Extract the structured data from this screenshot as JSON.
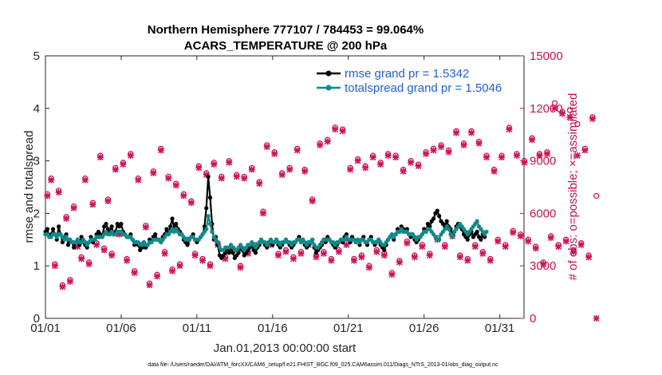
{
  "chart_data": {
    "type": "line",
    "title_line1": "Northern Hemisphere 777107 / 784453 = 99.064%",
    "title_line2": "ACARS_TEMPERATURE @ 200 hPa",
    "xlabel": "Jan.01,2013 00:00:00 start",
    "ylabel_left": "rmse and totalspread",
    "ylabel_right": "# of obs: o=possible; ×=assimilated",
    "footnote": "data file: /Users/raeder/DAI/ATM_forcXX/CAM6_setup/f.e21.FHIST_BGC.f09_025.CAM6assim.011/Diags_NTrS_2013-01/obs_diag_output.nc",
    "x_tick_labels": [
      "01/01",
      "01/06",
      "01/11",
      "01/16",
      "01/21",
      "01/26",
      "01/31"
    ],
    "x_tick_days": [
      0,
      5,
      10,
      15,
      20,
      25,
      30
    ],
    "xlim_days": [
      0,
      31.6
    ],
    "ylim_left": [
      0,
      5
    ],
    "y_ticks_left": [
      "0",
      "1",
      "2",
      "3",
      "4",
      "5"
    ],
    "ylim_right": [
      0,
      15000
    ],
    "y_ticks_right": [
      "0",
      "3000",
      "6000",
      "9000",
      "12000",
      "15000"
    ],
    "colors": {
      "rmse": "#000000",
      "spread": "#0e8a8a",
      "obs": "#d0145a",
      "legend_text": "#1f5fd6",
      "right_axis": "#c8104e"
    },
    "legend": [
      {
        "name": "rmse grand pr = 1.5342"
      },
      {
        "name": "totalspread grand pr = 1.5046"
      }
    ],
    "series": [
      {
        "name": "rmse",
        "step_days": 0.125,
        "values": [
          1.65,
          1.7,
          1.55,
          1.6,
          1.7,
          1.6,
          1.5,
          1.75,
          1.6,
          1.45,
          1.55,
          1.6,
          1.4,
          1.5,
          1.45,
          1.35,
          1.45,
          1.5,
          1.4,
          1.55,
          1.45,
          1.4,
          1.35,
          1.45,
          1.55,
          1.45,
          1.5,
          1.6,
          1.65,
          1.6,
          1.55,
          1.75,
          1.8,
          1.7,
          1.65,
          1.75,
          1.6,
          1.65,
          1.8,
          1.75,
          1.8,
          1.65,
          1.6,
          1.55,
          1.55,
          1.6,
          1.5,
          1.4,
          1.45,
          1.4,
          1.3,
          1.35,
          1.45,
          1.35,
          1.4,
          1.5,
          1.45,
          1.55,
          1.6,
          1.5,
          1.5,
          1.45,
          1.55,
          1.6,
          1.7,
          1.6,
          1.75,
          1.9,
          1.7,
          1.8,
          1.7,
          1.65,
          1.6,
          1.5,
          1.45,
          1.4,
          1.5,
          1.55,
          1.6,
          1.5,
          1.45,
          1.5,
          1.55,
          1.6,
          1.75,
          2.1,
          2.7,
          2.3,
          1.8,
          1.5,
          1.55,
          1.4,
          1.2,
          1.15,
          1.2,
          1.25,
          1.3,
          1.25,
          1.35,
          1.25,
          1.15,
          1.2,
          1.25,
          1.35,
          1.3,
          1.2,
          1.25,
          1.3,
          1.35,
          1.4,
          1.3,
          1.25,
          1.35,
          1.4,
          1.5,
          1.45,
          1.4,
          1.35,
          1.45,
          1.5,
          1.4,
          1.45,
          1.5,
          1.4,
          1.35,
          1.4,
          1.45,
          1.5,
          1.45,
          1.4,
          1.35,
          1.4,
          1.45,
          1.5,
          1.55,
          1.45,
          1.5,
          1.4,
          1.35,
          1.4,
          1.45,
          1.5,
          1.35,
          1.25,
          1.3,
          1.35,
          1.4,
          1.5,
          1.45,
          1.55,
          1.5,
          1.45,
          1.4,
          1.35,
          1.4,
          1.45,
          1.5,
          1.45,
          1.55,
          1.6,
          1.5,
          1.45,
          1.55,
          1.5,
          1.45,
          1.5,
          1.4,
          1.5,
          1.55,
          1.45,
          1.4,
          1.5,
          1.55,
          1.45,
          1.4,
          1.45,
          1.5,
          1.4,
          1.35,
          1.3,
          1.4,
          1.5,
          1.55,
          1.6,
          1.5,
          1.6,
          1.7,
          1.65,
          1.75,
          1.7,
          1.65,
          1.7,
          1.6,
          1.55,
          1.6,
          1.5,
          1.45,
          1.5,
          1.55,
          1.6,
          1.7,
          1.65,
          1.8,
          1.75,
          1.85,
          1.9,
          2.0,
          2.05,
          1.95,
          1.85,
          1.8,
          1.75,
          1.85,
          1.75,
          1.7,
          1.6,
          1.65,
          1.75,
          1.8,
          1.75,
          1.7,
          1.6,
          1.55,
          1.5,
          1.6,
          1.65,
          1.55,
          1.6,
          1.65,
          1.55,
          1.5,
          1.6,
          1.55
        ]
      },
      {
        "name": "totalspread",
        "step_days": 0.125,
        "values": [
          1.6,
          1.6,
          1.55,
          1.55,
          1.6,
          1.6,
          1.55,
          1.6,
          1.6,
          1.55,
          1.5,
          1.55,
          1.5,
          1.5,
          1.45,
          1.45,
          1.45,
          1.5,
          1.45,
          1.45,
          1.5,
          1.45,
          1.4,
          1.45,
          1.5,
          1.5,
          1.5,
          1.55,
          1.55,
          1.55,
          1.55,
          1.6,
          1.65,
          1.6,
          1.6,
          1.65,
          1.6,
          1.6,
          1.65,
          1.65,
          1.65,
          1.6,
          1.6,
          1.55,
          1.55,
          1.55,
          1.5,
          1.45,
          1.45,
          1.45,
          1.4,
          1.4,
          1.45,
          1.4,
          1.4,
          1.45,
          1.45,
          1.5,
          1.5,
          1.5,
          1.5,
          1.45,
          1.5,
          1.55,
          1.6,
          1.6,
          1.65,
          1.7,
          1.65,
          1.7,
          1.65,
          1.6,
          1.6,
          1.55,
          1.5,
          1.5,
          1.5,
          1.55,
          1.55,
          1.5,
          1.5,
          1.5,
          1.55,
          1.6,
          1.65,
          1.7,
          1.95,
          1.8,
          1.65,
          1.55,
          1.5,
          1.45,
          1.35,
          1.3,
          1.3,
          1.35,
          1.35,
          1.35,
          1.4,
          1.35,
          1.3,
          1.3,
          1.35,
          1.4,
          1.35,
          1.3,
          1.35,
          1.4,
          1.4,
          1.45,
          1.4,
          1.35,
          1.4,
          1.45,
          1.5,
          1.45,
          1.45,
          1.4,
          1.45,
          1.5,
          1.45,
          1.45,
          1.5,
          1.45,
          1.4,
          1.45,
          1.45,
          1.5,
          1.45,
          1.45,
          1.4,
          1.45,
          1.45,
          1.5,
          1.5,
          1.45,
          1.5,
          1.45,
          1.4,
          1.45,
          1.45,
          1.5,
          1.4,
          1.35,
          1.35,
          1.4,
          1.45,
          1.5,
          1.5,
          1.5,
          1.5,
          1.45,
          1.45,
          1.4,
          1.45,
          1.45,
          1.5,
          1.5,
          1.5,
          1.55,
          1.5,
          1.5,
          1.5,
          1.5,
          1.45,
          1.5,
          1.45,
          1.5,
          1.5,
          1.45,
          1.45,
          1.5,
          1.5,
          1.45,
          1.45,
          1.45,
          1.5,
          1.45,
          1.4,
          1.4,
          1.45,
          1.5,
          1.55,
          1.6,
          1.55,
          1.6,
          1.65,
          1.65,
          1.7,
          1.65,
          1.65,
          1.65,
          1.6,
          1.6,
          1.6,
          1.55,
          1.5,
          1.55,
          1.55,
          1.6,
          1.65,
          1.65,
          1.7,
          1.7,
          1.65,
          1.6,
          1.55,
          1.5,
          1.5,
          1.6,
          1.65,
          1.7,
          1.75,
          1.7,
          1.6,
          1.55,
          1.65,
          1.7,
          1.75,
          1.8,
          1.75,
          1.7,
          1.65,
          1.6,
          1.65,
          1.7,
          1.75,
          1.8,
          1.85,
          1.75,
          1.7,
          1.65,
          1.6,
          1.65
        ]
      },
      {
        "name": "observations",
        "step_days": 0.25,
        "possible": [
          7100,
          8000,
          3100,
          7300,
          1900,
          5800,
          2200,
          6400,
          4200,
          3500,
          8000,
          3200,
          6600,
          4300,
          9300,
          4000,
          6800,
          3700,
          8600,
          4900,
          8900,
          3400,
          9400,
          2700,
          8000,
          4200,
          5300,
          2000,
          8400,
          2500,
          9700,
          3800,
          8100,
          2800,
          7700,
          3100,
          7100,
          4500,
          6700,
          3700,
          8700,
          3400,
          8300,
          3100,
          8900,
          4300,
          8100,
          3500,
          9000,
          4000,
          8200,
          3000,
          8100,
          3800,
          8600,
          4200,
          7800,
          6100,
          9900,
          4300,
          9500,
          3700,
          8300,
          3900,
          8600,
          3500,
          9700,
          3800,
          8500,
          4300,
          6800,
          3600,
          10000,
          3800,
          10200,
          3400,
          10900,
          3900,
          10800,
          4300,
          8600,
          3400,
          9100,
          3600,
          8700,
          3000,
          9300,
          3900,
          8900,
          3700,
          9400,
          2600,
          9300,
          3300,
          8500,
          4400,
          9000,
          3600,
          8800,
          4200,
          9500,
          3700,
          9700,
          4600,
          9900,
          4200,
          9600,
          4800,
          10700,
          3600,
          10000,
          3400,
          10700,
          4200,
          10100,
          3800,
          9300,
          3400,
          8500,
          4500,
          9300,
          4200,
          10900,
          5000,
          9400,
          4800,
          9000,
          4500,
          10300,
          4100,
          9400,
          3200,
          9500,
          4700,
          12300,
          4200,
          11800,
          4500,
          11900,
          3900,
          11100,
          4300,
          9700,
          3600,
          11500,
          7000
        ]
      },
      {
        "name": "assimilated",
        "step_days": 0.25,
        "values": [
          7000,
          7900,
          3000,
          7200,
          1800,
          5700,
          2100,
          6300,
          4100,
          3400,
          7900,
          3100,
          6500,
          4200,
          9200,
          3900,
          6700,
          3600,
          8500,
          4800,
          8800,
          3300,
          9300,
          2600,
          7900,
          4100,
          5200,
          1900,
          8300,
          2400,
          9600,
          3700,
          8000,
          2700,
          7600,
          3000,
          7000,
          4400,
          6600,
          3600,
          8600,
          3300,
          8200,
          3000,
          8800,
          4200,
          8000,
          3400,
          8900,
          3900,
          8100,
          2900,
          8000,
          3700,
          8500,
          4100,
          7700,
          6000,
          9800,
          4200,
          9400,
          3600,
          8200,
          3800,
          8500,
          3400,
          9600,
          3700,
          8400,
          4200,
          6700,
          3500,
          9900,
          3700,
          10100,
          3300,
          10800,
          3800,
          10700,
          4200,
          8500,
          3300,
          9000,
          3500,
          8600,
          2900,
          9200,
          3800,
          8800,
          3600,
          9300,
          2500,
          9200,
          3200,
          8400,
          4300,
          8900,
          3500,
          8700,
          4100,
          9400,
          3600,
          9600,
          4500,
          9800,
          4100,
          9500,
          4700,
          10600,
          3500,
          9900,
          3300,
          10600,
          4100,
          10000,
          3700,
          9200,
          3300,
          8400,
          4400,
          9200,
          4100,
          10800,
          4900,
          9300,
          4700,
          8900,
          4400,
          10200,
          4000,
          9300,
          3100,
          9400,
          4600,
          12000,
          4100,
          11700,
          4400,
          11500,
          3800,
          9300,
          4200,
          9600,
          3500,
          11400,
          0
        ]
      }
    ]
  }
}
